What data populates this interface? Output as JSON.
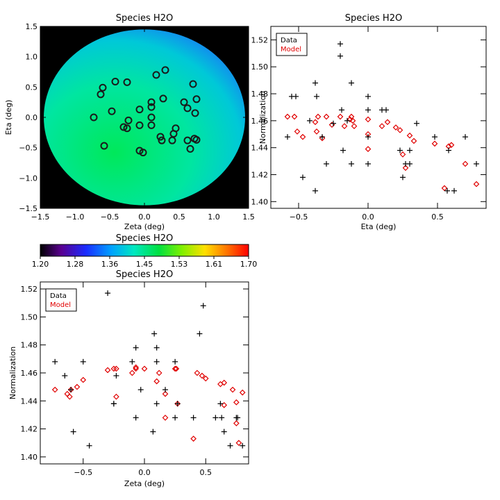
{
  "chart_data": [
    {
      "id": "map",
      "type": "heatmap",
      "title": "Species H2O",
      "xlabel": "Zeta (deg)",
      "ylabel": "Eta (deg)",
      "xlim": [
        -1.5,
        1.5
      ],
      "ylim": [
        -1.5,
        1.5
      ],
      "xticks": [
        -1.5,
        -1.0,
        -0.5,
        0.0,
        0.5,
        1.0,
        1.5
      ],
      "yticks": [
        -1.5,
        -1.0,
        -0.5,
        0.0,
        0.5,
        1.0,
        1.5
      ],
      "xtick_labels": [
        "−1.5",
        "−1.0",
        "−0.5",
        "0.0",
        "0.5",
        "1.0",
        "1.5"
      ],
      "ytick_labels": [
        "−1.5",
        "−1.0",
        "−0.5",
        "0.0",
        "0.5",
        "1.0",
        "1.5"
      ],
      "field_radius": 1.45,
      "field_gradient": {
        "inner_value": 1.44,
        "outer_value": 1.37,
        "direction": "upper-right"
      },
      "points": [
        [
          0.75,
          -0.37
        ],
        [
          0.72,
          -0.35
        ],
        [
          0.3,
          0.78
        ],
        [
          0.17,
          0.7
        ],
        [
          -0.25,
          0.58
        ],
        [
          -0.42,
          0.59
        ],
        [
          -0.6,
          0.49
        ],
        [
          -0.63,
          0.38
        ],
        [
          0.7,
          0.55
        ],
        [
          0.27,
          0.31
        ],
        [
          0.1,
          0.25
        ],
        [
          0.75,
          0.3
        ],
        [
          0.57,
          0.25
        ],
        [
          0.62,
          0.15
        ],
        [
          0.73,
          0.07
        ],
        [
          -0.47,
          0.1
        ],
        [
          -0.07,
          0.13
        ],
        [
          0.1,
          0.17
        ],
        [
          -0.73,
          0.0
        ],
        [
          0.1,
          0.0
        ],
        [
          -0.23,
          -0.05
        ],
        [
          -0.07,
          -0.13
        ],
        [
          0.1,
          -0.13
        ],
        [
          -0.3,
          -0.16
        ],
        [
          -0.25,
          -0.18
        ],
        [
          0.45,
          -0.18
        ],
        [
          0.42,
          -0.27
        ],
        [
          0.23,
          -0.32
        ],
        [
          0.25,
          -0.38
        ],
        [
          0.4,
          -0.38
        ],
        [
          0.62,
          -0.38
        ],
        [
          -0.58,
          -0.47
        ],
        [
          0.66,
          -0.52
        ],
        [
          -0.07,
          -0.55
        ],
        [
          -0.02,
          -0.58
        ]
      ]
    },
    {
      "id": "eta",
      "type": "scatter",
      "title": "Species H2O",
      "xlabel": "Eta (deg)",
      "ylabel": "Normalization",
      "xlim": [
        -0.7,
        0.85
      ],
      "ylim": [
        1.395,
        1.53
      ],
      "xticks": [
        -0.5,
        0.0,
        0.5
      ],
      "yticks": [
        1.4,
        1.42,
        1.44,
        1.46,
        1.48,
        1.5,
        1.52
      ],
      "xtick_labels": [
        "−0.5",
        "0.0",
        "0.5"
      ],
      "ytick_labels": [
        "1.40",
        "1.42",
        "1.44",
        "1.46",
        "1.48",
        "1.50",
        "1.52"
      ],
      "legend": {
        "position": "top-left",
        "entries": [
          "Data",
          "Model"
        ]
      },
      "series": [
        {
          "name": "Data",
          "marker": "plus",
          "color": "#000000",
          "x": [
            -0.58,
            -0.55,
            -0.52,
            -0.47,
            -0.42,
            -0.38,
            -0.38,
            -0.37,
            -0.33,
            -0.3,
            -0.25,
            -0.2,
            -0.2,
            -0.19,
            -0.18,
            -0.15,
            -0.12,
            -0.12,
            0.0,
            0.0,
            0.0,
            0.0,
            0.1,
            0.13,
            0.23,
            0.25,
            0.27,
            0.3,
            0.3,
            0.35,
            0.48,
            0.57,
            0.58,
            0.62,
            0.7,
            0.78
          ],
          "y": [
            1.448,
            1.478,
            1.478,
            1.418,
            1.46,
            1.488,
            1.408,
            1.478,
            1.448,
            1.428,
            1.458,
            1.517,
            1.508,
            1.468,
            1.438,
            1.46,
            1.488,
            1.428,
            1.478,
            1.468,
            1.448,
            1.428,
            1.468,
            1.468,
            1.438,
            1.418,
            1.428,
            1.438,
            1.428,
            1.458,
            1.448,
            1.408,
            1.438,
            1.408,
            1.448,
            1.428
          ]
        },
        {
          "name": "Model",
          "marker": "diamond",
          "color": "#e00000",
          "x": [
            -0.58,
            -0.53,
            -0.51,
            -0.47,
            -0.38,
            -0.37,
            -0.36,
            -0.33,
            -0.3,
            -0.26,
            -0.2,
            -0.17,
            -0.13,
            -0.12,
            -0.11,
            -0.1,
            0.0,
            0.0,
            0.0,
            0.1,
            0.14,
            0.2,
            0.23,
            0.25,
            0.27,
            0.3,
            0.33,
            0.48,
            0.58,
            0.6,
            0.55,
            0.7,
            0.78
          ],
          "y": [
            1.463,
            1.463,
            1.452,
            1.448,
            1.459,
            1.452,
            1.463,
            1.447,
            1.463,
            1.457,
            1.463,
            1.456,
            1.461,
            1.463,
            1.46,
            1.456,
            1.461,
            1.45,
            1.439,
            1.456,
            1.459,
            1.455,
            1.453,
            1.435,
            1.425,
            1.449,
            1.445,
            1.443,
            1.441,
            1.442,
            1.41,
            1.428,
            1.413
          ]
        }
      ]
    },
    {
      "id": "zeta",
      "type": "scatter",
      "title": "Species H2O",
      "xlabel": "Zeta (deg)",
      "ylabel": "Normalization",
      "xlim": [
        -0.85,
        0.85
      ],
      "ylim": [
        1.395,
        1.525
      ],
      "xticks": [
        -0.5,
        0.0,
        0.5
      ],
      "yticks": [
        1.4,
        1.42,
        1.44,
        1.46,
        1.48,
        1.5,
        1.52
      ],
      "xtick_labels": [
        "−0.5",
        "0.0",
        "0.5"
      ],
      "ytick_labels": [
        "1.40",
        "1.42",
        "1.44",
        "1.46",
        "1.48",
        "1.50",
        "1.52"
      ],
      "legend": {
        "position": "top-left",
        "entries": [
          "Data",
          "Model"
        ]
      },
      "series": [
        {
          "name": "Data",
          "marker": "plus",
          "color": "#000000",
          "x": [
            -0.73,
            -0.65,
            -0.6,
            -0.58,
            -0.5,
            -0.45,
            -0.3,
            -0.25,
            -0.25,
            -0.23,
            -0.1,
            -0.07,
            -0.07,
            -0.03,
            0.07,
            0.08,
            0.1,
            0.1,
            0.1,
            0.17,
            0.25,
            0.25,
            0.27,
            0.4,
            0.45,
            0.48,
            0.58,
            0.62,
            0.63,
            0.65,
            0.7,
            0.75,
            0.76,
            0.8
          ],
          "y": [
            1.468,
            1.458,
            1.448,
            1.418,
            1.468,
            1.408,
            1.517,
            1.438,
            1.438,
            1.458,
            1.468,
            1.478,
            1.428,
            1.448,
            1.418,
            1.488,
            1.478,
            1.468,
            1.438,
            1.448,
            1.428,
            1.468,
            1.438,
            1.428,
            1.488,
            1.508,
            1.428,
            1.438,
            1.428,
            1.418,
            1.408,
            1.428,
            1.428,
            1.408
          ]
        },
        {
          "name": "Model",
          "marker": "diamond",
          "color": "#e00000",
          "x": [
            -0.73,
            -0.63,
            -0.61,
            -0.6,
            -0.55,
            -0.5,
            -0.3,
            -0.25,
            -0.23,
            -0.23,
            -0.1,
            -0.07,
            -0.07,
            0.0,
            0.1,
            0.12,
            0.17,
            0.17,
            0.25,
            0.26,
            0.27,
            0.4,
            0.43,
            0.47,
            0.5,
            0.62,
            0.65,
            0.65,
            0.72,
            0.75,
            0.75,
            0.77,
            0.8
          ],
          "y": [
            1.448,
            1.445,
            1.443,
            1.448,
            1.45,
            1.455,
            1.462,
            1.463,
            1.463,
            1.443,
            1.46,
            1.463,
            1.464,
            1.463,
            1.454,
            1.46,
            1.428,
            1.445,
            1.463,
            1.463,
            1.438,
            1.413,
            1.46,
            1.458,
            1.456,
            1.452,
            1.453,
            1.437,
            1.448,
            1.439,
            1.424,
            1.41,
            1.446
          ]
        }
      ]
    }
  ],
  "colorbar": {
    "title": "Species H2O",
    "labels": [
      "1.20",
      "1.28",
      "1.36",
      "1.45",
      "1.53",
      "1.61",
      "1.70"
    ],
    "range": [
      1.2,
      1.7
    ]
  }
}
